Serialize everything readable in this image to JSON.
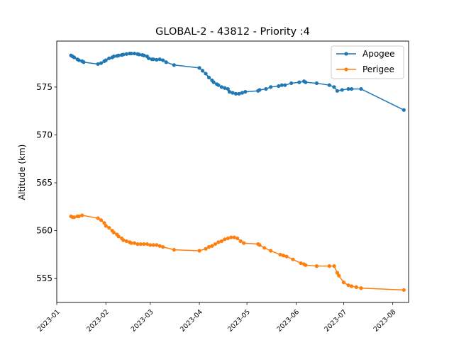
{
  "chart_data": {
    "type": "line",
    "title": "GLOBAL-2 - 43812 - Priority :4",
    "xlabel": "",
    "ylabel": "Altitude (km)",
    "x_axis": "date",
    "xlim": [
      "2023-01-01",
      "2023-08-11"
    ],
    "ylim": [
      552.5,
      579.8
    ],
    "x_ticks": [
      "2023-01",
      "2023-02",
      "2023-03",
      "2023-04",
      "2023-05",
      "2023-06",
      "2023-07",
      "2023-08"
    ],
    "y_ticks": [
      555,
      560,
      565,
      570,
      575
    ],
    "grid": false,
    "legend": "top-right",
    "series": [
      {
        "name": "Apogee",
        "color": "#1f77b4",
        "x": [
          "2023-01-10",
          "2023-01-11",
          "2023-01-12",
          "2023-01-14",
          "2023-01-15",
          "2023-01-17",
          "2023-01-18",
          "2023-01-27",
          "2023-01-29",
          "2023-01-31",
          "2023-02-01",
          "2023-02-03",
          "2023-02-05",
          "2023-02-06",
          "2023-02-08",
          "2023-02-09",
          "2023-02-11",
          "2023-02-12",
          "2023-02-14",
          "2023-02-16",
          "2023-02-17",
          "2023-02-19",
          "2023-02-21",
          "2023-02-22",
          "2023-02-24",
          "2023-02-25",
          "2023-02-27",
          "2023-02-28",
          "2023-03-02",
          "2023-03-03",
          "2023-03-05",
          "2023-03-07",
          "2023-03-09",
          "2023-03-11",
          "2023-03-16",
          "2023-04-01",
          "2023-04-03",
          "2023-04-05",
          "2023-04-07",
          "2023-04-09",
          "2023-04-10",
          "2023-04-12",
          "2023-04-13",
          "2023-04-15",
          "2023-04-17",
          "2023-04-19",
          "2023-04-20",
          "2023-04-22",
          "2023-04-24",
          "2023-04-26",
          "2023-04-28",
          "2023-04-30",
          "2023-05-08",
          "2023-05-09",
          "2023-05-13",
          "2023-05-16",
          "2023-05-21",
          "2023-05-23",
          "2023-05-25",
          "2023-05-29",
          "2023-06-03",
          "2023-06-06",
          "2023-06-07",
          "2023-06-14",
          "2023-06-22",
          "2023-06-25",
          "2023-06-27",
          "2023-06-30",
          "2023-07-04",
          "2023-07-06",
          "2023-07-12",
          "2023-08-08"
        ],
        "values": [
          578.3,
          578.2,
          578.1,
          577.9,
          577.8,
          577.7,
          577.6,
          577.4,
          577.5,
          577.7,
          577.8,
          578.0,
          578.1,
          578.2,
          578.25,
          578.3,
          578.35,
          578.4,
          578.45,
          578.5,
          578.5,
          578.5,
          578.45,
          578.4,
          578.35,
          578.3,
          578.2,
          578.0,
          577.9,
          577.9,
          577.85,
          577.9,
          577.8,
          577.6,
          577.3,
          577.0,
          576.7,
          576.4,
          576.0,
          575.7,
          575.5,
          575.3,
          575.2,
          575.0,
          574.9,
          574.8,
          574.5,
          574.4,
          574.3,
          574.3,
          574.4,
          574.5,
          574.6,
          574.7,
          574.8,
          575.0,
          575.1,
          575.2,
          575.2,
          575.4,
          575.5,
          575.6,
          575.5,
          575.4,
          575.2,
          575.0,
          574.6,
          574.7,
          574.8,
          574.8,
          574.8,
          572.6
        ]
      },
      {
        "name": "Perigee",
        "color": "#ff7f0e",
        "x": [
          "2023-01-10",
          "2023-01-11",
          "2023-01-12",
          "2023-01-14",
          "2023-01-15",
          "2023-01-17",
          "2023-01-27",
          "2023-01-29",
          "2023-01-31",
          "2023-02-01",
          "2023-02-03",
          "2023-02-05",
          "2023-02-06",
          "2023-02-08",
          "2023-02-09",
          "2023-02-11",
          "2023-02-12",
          "2023-02-14",
          "2023-02-16",
          "2023-02-17",
          "2023-02-19",
          "2023-02-21",
          "2023-02-23",
          "2023-02-25",
          "2023-02-27",
          "2023-03-01",
          "2023-03-03",
          "2023-03-05",
          "2023-03-07",
          "2023-03-09",
          "2023-03-16",
          "2023-04-01",
          "2023-04-05",
          "2023-04-07",
          "2023-04-09",
          "2023-04-11",
          "2023-04-13",
          "2023-04-15",
          "2023-04-17",
          "2023-04-19",
          "2023-04-21",
          "2023-04-23",
          "2023-04-25",
          "2023-04-27",
          "2023-04-29",
          "2023-05-08",
          "2023-05-09",
          "2023-05-12",
          "2023-05-16",
          "2023-05-22",
          "2023-05-24",
          "2023-05-26",
          "2023-05-30",
          "2023-06-04",
          "2023-06-06",
          "2023-06-07",
          "2023-06-14",
          "2023-06-22",
          "2023-06-25",
          "2023-06-27",
          "2023-06-28",
          "2023-07-01",
          "2023-07-04",
          "2023-07-06",
          "2023-07-09",
          "2023-07-12",
          "2023-08-08"
        ],
        "values": [
          561.5,
          561.4,
          561.4,
          561.5,
          561.5,
          561.6,
          561.3,
          561.1,
          560.8,
          560.5,
          560.3,
          560.0,
          559.8,
          559.6,
          559.4,
          559.2,
          559.0,
          558.9,
          558.8,
          558.7,
          558.7,
          558.6,
          558.6,
          558.6,
          558.6,
          558.5,
          558.5,
          558.5,
          558.4,
          558.3,
          558.0,
          557.9,
          558.1,
          558.3,
          558.4,
          558.6,
          558.8,
          558.9,
          559.1,
          559.2,
          559.3,
          559.3,
          559.2,
          558.9,
          558.7,
          558.6,
          558.5,
          558.2,
          557.9,
          557.5,
          557.4,
          557.3,
          557.0,
          556.6,
          556.5,
          556.4,
          556.3,
          556.3,
          556.3,
          555.6,
          555.3,
          554.6,
          554.3,
          554.2,
          554.1,
          554.0,
          553.8
        ]
      }
    ]
  }
}
